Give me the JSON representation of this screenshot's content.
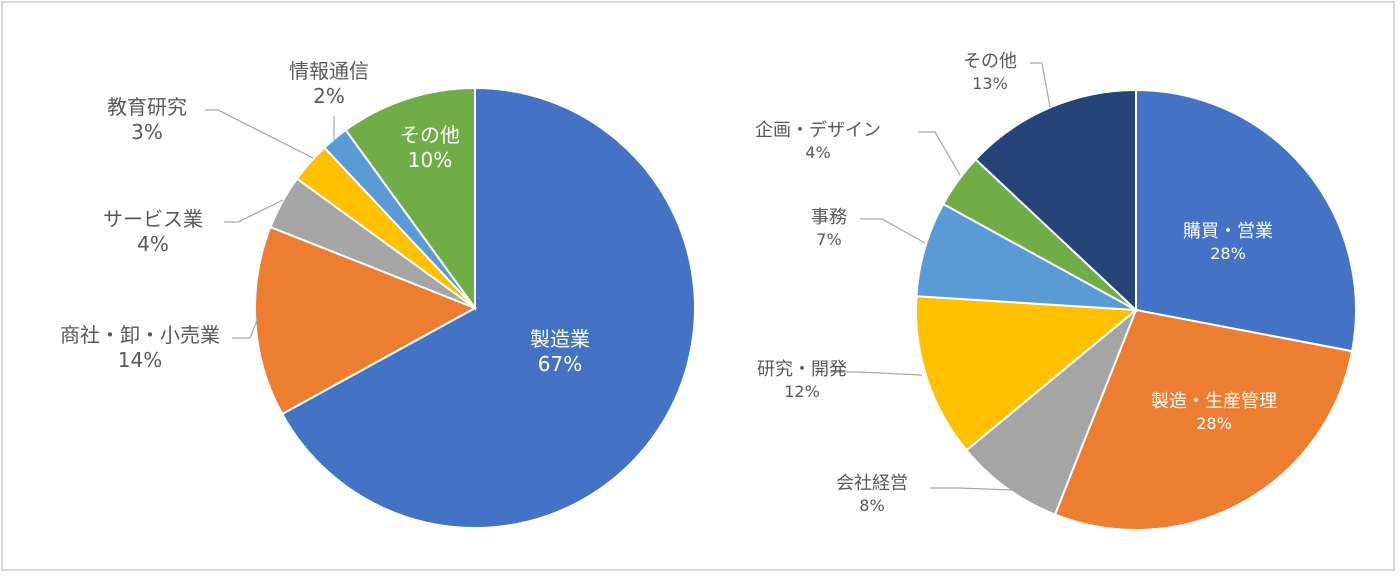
{
  "chart_data": [
    {
      "type": "pie",
      "title": "",
      "start_angle": "12 o'clock, clockwise",
      "categories": [
        "製造業",
        "商社・卸・小売業",
        "サービス業",
        "教育研究",
        "情報通信",
        "その他"
      ],
      "values": [
        67,
        14,
        4,
        3,
        2,
        10
      ],
      "labels": [
        "製造業",
        "商社・卸・小売業",
        "サービス業",
        "教育研究",
        "情報通信",
        "その他"
      ],
      "percent_labels": [
        "67%",
        "14%",
        "4%",
        "3%",
        "2%",
        "10%"
      ],
      "colors": [
        "#4472c4",
        "#ed7d31",
        "#a5a5a5",
        "#ffc000",
        "#5b9bd5",
        "#70ad47"
      ],
      "legend": "none (data labels with leader lines)"
    },
    {
      "type": "pie",
      "title": "",
      "start_angle": "12 o'clock, clockwise",
      "categories": [
        "購買・営業",
        "製造・生産管理",
        "会社経営",
        "研究・開発",
        "事務",
        "企画・デザイン",
        "その他"
      ],
      "values": [
        28,
        28,
        8,
        12,
        7,
        4,
        13
      ],
      "labels": [
        "購買・営業",
        "製造・生産管理",
        "会社経営",
        "研究・開発",
        "事務",
        "企画・デザイン",
        "その他"
      ],
      "percent_labels": [
        "28%",
        "28%",
        "8%",
        "12%",
        "7%",
        "4%",
        "13%"
      ],
      "colors": [
        "#4472c4",
        "#ed7d31",
        "#a5a5a5",
        "#ffc000",
        "#5b9bd5",
        "#70ad47",
        "#264478"
      ],
      "legend": "none (data labels with leader lines)"
    }
  ],
  "left": {
    "slices": [
      {
        "name": "製造業",
        "pct": "67%"
      },
      {
        "name": "商社・卸・小売業",
        "pct": "14%"
      },
      {
        "name": "サービス業",
        "pct": "4%"
      },
      {
        "name": "教育研究",
        "pct": "3%"
      },
      {
        "name": "情報通信",
        "pct": "2%"
      },
      {
        "name": "その他",
        "pct": "10%"
      }
    ]
  },
  "right": {
    "slices": [
      {
        "name": "購買・営業",
        "pct": "28%"
      },
      {
        "name": "製造・生産管理",
        "pct": "28%"
      },
      {
        "name": "会社経営",
        "pct": "8%"
      },
      {
        "name": "研究・開発",
        "pct": "12%"
      },
      {
        "name": "事務",
        "pct": "7%"
      },
      {
        "name": "企画・デザイン",
        "pct": "4%"
      },
      {
        "name": "その他",
        "pct": "13%"
      }
    ]
  }
}
